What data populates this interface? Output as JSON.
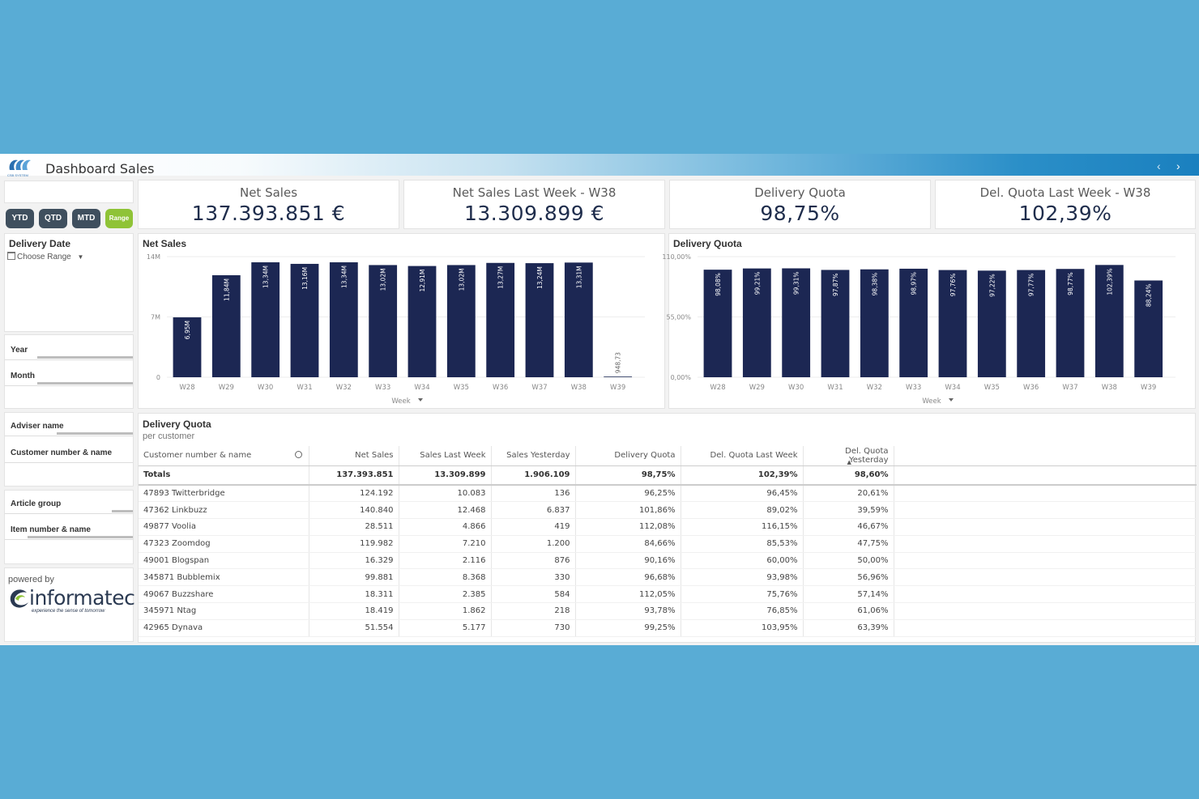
{
  "app": {
    "title": "Dashboard Sales",
    "logo_text": "CSB SYSTEM"
  },
  "filters": {
    "buttons": [
      {
        "label": "YTD",
        "active": false
      },
      {
        "label": "QTD",
        "active": false
      },
      {
        "label": "MTD",
        "active": false
      },
      {
        "label": "Range",
        "active": true
      }
    ],
    "delivery_date_label": "Delivery Date",
    "choose_range_label": "Choose Range",
    "listboxes": [
      "Year",
      "Month",
      "Adviser name",
      "Customer number & name",
      "Article group",
      "Item number & name"
    ],
    "powered_by": "powered by",
    "brand": "informatec",
    "brand_tagline": "experience the sense of tomorrow"
  },
  "kpis": [
    {
      "title": "Net Sales",
      "value": "137.393.851 €"
    },
    {
      "title": "Net Sales Last Week - W38",
      "value": "13.309.899 €"
    },
    {
      "title": "Delivery Quota",
      "value": "98,75%"
    },
    {
      "title": "Del. Quota Last Week - W38",
      "value": "102,39%"
    }
  ],
  "chart_data": [
    {
      "type": "bar",
      "title": "Net Sales",
      "xlabel": "Week",
      "categories": [
        "W28",
        "W29",
        "W30",
        "W31",
        "W32",
        "W33",
        "W34",
        "W35",
        "W36",
        "W37",
        "W38",
        "W39"
      ],
      "values": [
        6950000,
        11840000,
        13340000,
        13160000,
        13340000,
        13020000,
        12910000,
        13020000,
        13270000,
        13240000,
        13310000,
        948.73
      ],
      "labels": [
        "6,95M",
        "11,84M",
        "13,34M",
        "13,16M",
        "13,34M",
        "13,02M",
        "12,91M",
        "13,02M",
        "13,27M",
        "13,24M",
        "13,31M",
        "948,73"
      ],
      "yticks": [
        {
          "value": 0,
          "label": "0"
        },
        {
          "value": 7000000,
          "label": "7M"
        },
        {
          "value": 14000000,
          "label": "14M"
        }
      ],
      "ylim": [
        0,
        14000000
      ],
      "color": "#1c2753"
    },
    {
      "type": "bar",
      "title": "Delivery Quota",
      "xlabel": "Week",
      "categories": [
        "W28",
        "W29",
        "W30",
        "W31",
        "W32",
        "W33",
        "W34",
        "W35",
        "W36",
        "W37",
        "W38",
        "W39"
      ],
      "values": [
        98.08,
        99.21,
        99.31,
        97.87,
        98.38,
        98.97,
        97.76,
        97.22,
        97.77,
        98.77,
        102.39,
        88.24
      ],
      "labels": [
        "98,08%",
        "99,21%",
        "99,31%",
        "97,87%",
        "98,38%",
        "98,97%",
        "97,76%",
        "97,22%",
        "97,77%",
        "98,77%",
        "102,39%",
        "88,24%"
      ],
      "yticks": [
        {
          "value": 0,
          "label": "0,00%"
        },
        {
          "value": 55,
          "label": "55,00%"
        },
        {
          "value": 110,
          "label": "110,00%"
        }
      ],
      "ylim": [
        0,
        110
      ],
      "color": "#1c2753"
    }
  ],
  "table": {
    "title": "Delivery Quota",
    "subtitle": "per customer",
    "columns": [
      "Customer number & name",
      "Net Sales",
      "Sales Last Week",
      "Sales Yesterday",
      "Delivery Quota",
      "Del. Quota Last Week",
      "Del. Quota Yesterday"
    ],
    "totals": [
      "Totals",
      "137.393.851",
      "13.309.899",
      "1.906.109",
      "98,75%",
      "102,39%",
      "98,60%"
    ],
    "rows": [
      [
        "47893 Twitterbridge",
        "124.192",
        "10.083",
        "136",
        "96,25%",
        "96,45%",
        "20,61%"
      ],
      [
        "47362 Linkbuzz",
        "140.840",
        "12.468",
        "6.837",
        "101,86%",
        "89,02%",
        "39,59%"
      ],
      [
        "49877 Voolia",
        "28.511",
        "4.866",
        "419",
        "112,08%",
        "116,15%",
        "46,67%"
      ],
      [
        "47323 Zoomdog",
        "119.982",
        "7.210",
        "1.200",
        "84,66%",
        "85,53%",
        "47,75%"
      ],
      [
        "49001 Blogspan",
        "16.329",
        "2.116",
        "876",
        "90,16%",
        "60,00%",
        "50,00%"
      ],
      [
        "345871 Bubblemix",
        "99.881",
        "8.368",
        "330",
        "96,68%",
        "93,98%",
        "56,96%"
      ],
      [
        "49067 Buzzshare",
        "18.311",
        "2.385",
        "584",
        "112,05%",
        "75,76%",
        "57,14%"
      ],
      [
        "345971 Ntag",
        "18.419",
        "1.862",
        "218",
        "93,78%",
        "76,85%",
        "61,06%"
      ],
      [
        "42965 Dynava",
        "51.554",
        "5.177",
        "730",
        "99,25%",
        "103,95%",
        "63,39%"
      ]
    ]
  }
}
